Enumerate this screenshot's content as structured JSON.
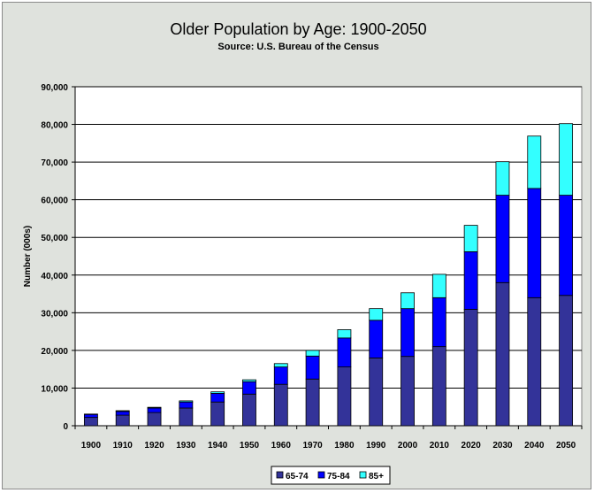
{
  "chart_data": {
    "type": "bar",
    "stacked": true,
    "title": "Older Population by Age: 1900-2050",
    "subtitle": "Source: U.S. Bureau of the Census",
    "ylabel": "Number (000s)",
    "xlabel": "",
    "ylim": [
      0,
      90000
    ],
    "ytick_labels": [
      "0",
      "10,000",
      "20,000",
      "30,000",
      "40,000",
      "50,000",
      "60,000",
      "70,000",
      "80,000",
      "90,000"
    ],
    "grid": true,
    "legend_position": "bottom",
    "categories": [
      "1900",
      "1910",
      "1920",
      "1930",
      "1940",
      "1950",
      "1960",
      "1970",
      "1980",
      "1990",
      "2000",
      "2010",
      "2020",
      "2030",
      "2040",
      "2050"
    ],
    "series": [
      {
        "name": "65-74",
        "color": "#333399",
        "values": [
          2200,
          2800,
          3500,
          4700,
          6300,
          8400,
          11000,
          12400,
          15600,
          18000,
          18400,
          21000,
          30900,
          38000,
          34000,
          34600
        ]
      },
      {
        "name": "75-84",
        "color": "#0000ff",
        "values": [
          800,
          1000,
          1200,
          1600,
          2300,
          3300,
          4600,
          6100,
          7700,
          10000,
          12700,
          13000,
          15300,
          23200,
          29000,
          26600
        ]
      },
      {
        "name": "85+",
        "color": "#33ffff",
        "values": [
          100,
          200,
          200,
          300,
          400,
          500,
          900,
          1500,
          2200,
          3100,
          4200,
          6200,
          7000,
          8900,
          13900,
          19000
        ]
      }
    ]
  }
}
